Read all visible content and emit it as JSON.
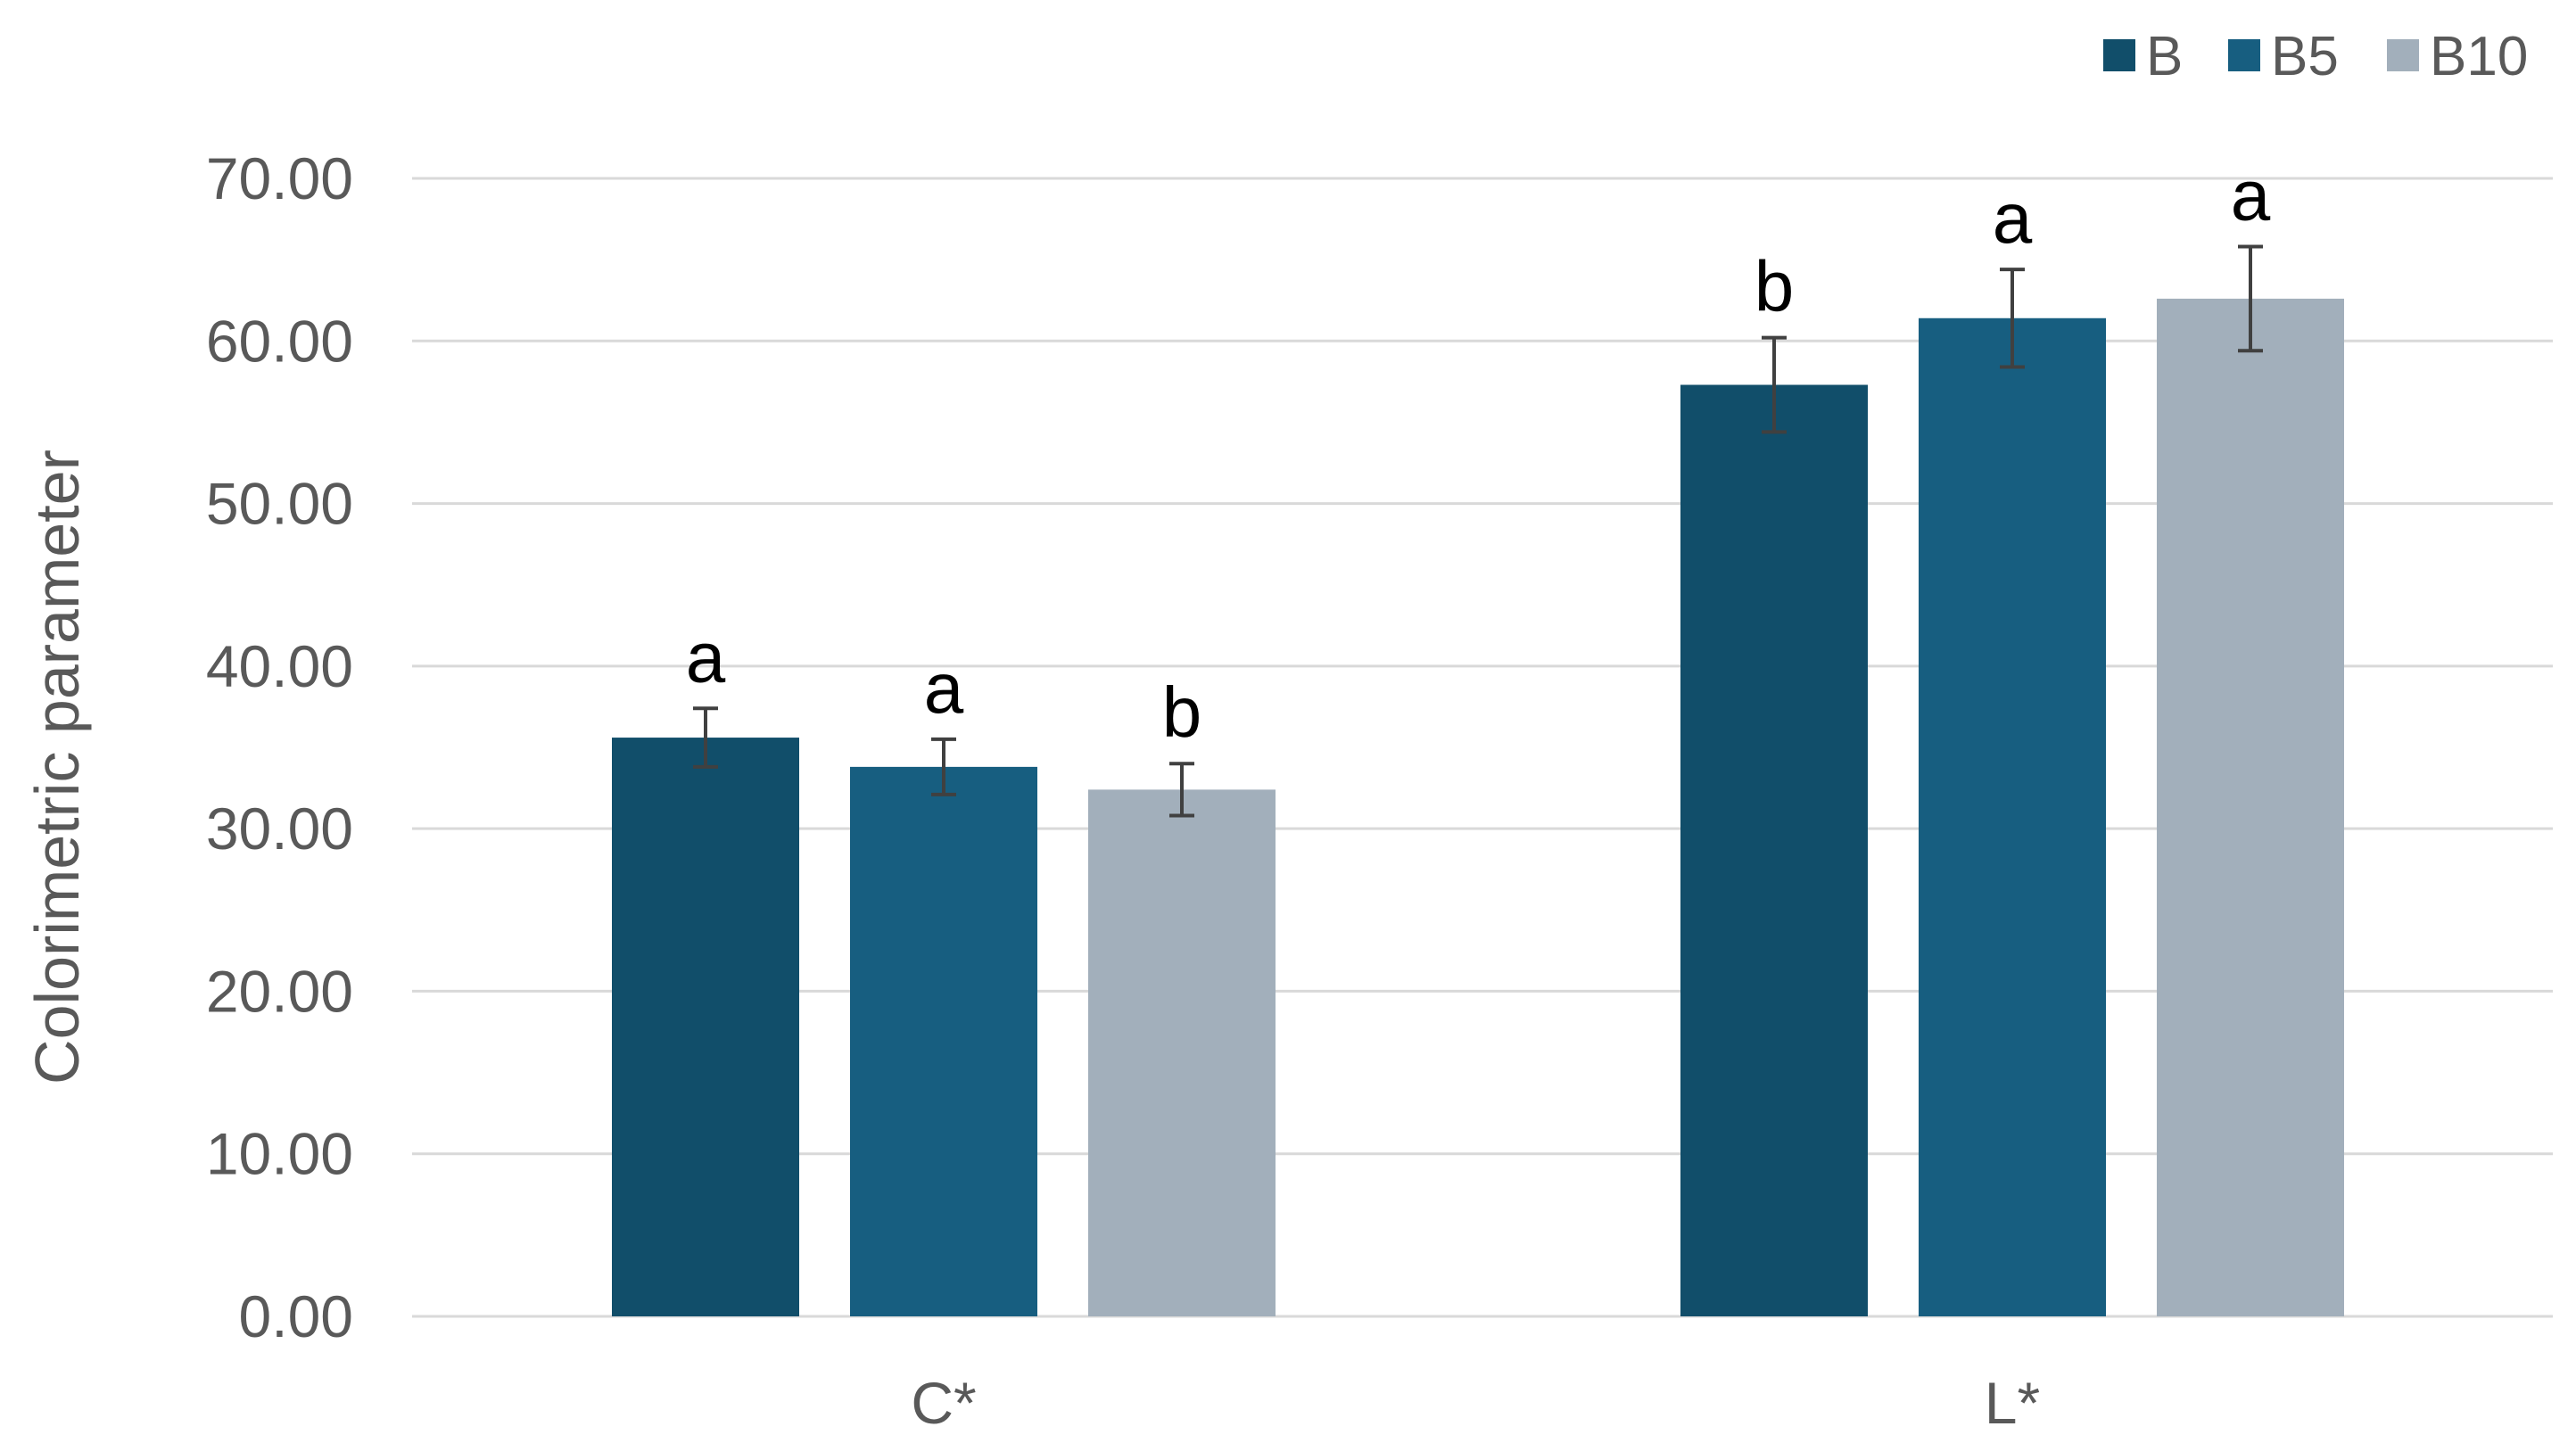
{
  "chart_data": {
    "type": "bar",
    "categories": [
      "C*",
      "L*"
    ],
    "series": [
      {
        "name": "B",
        "color": "#114e6a",
        "values": [
          35.6,
          57.3
        ],
        "errors": [
          1.8,
          2.9
        ],
        "labels": [
          "a",
          "b"
        ]
      },
      {
        "name": "B5",
        "color": "#175e80",
        "values": [
          33.8,
          61.4
        ],
        "errors": [
          1.7,
          3.0
        ],
        "labels": [
          "a",
          "a"
        ]
      },
      {
        "name": "B10",
        "color": "#a2afbb",
        "values": [
          32.4,
          62.6
        ],
        "errors": [
          1.6,
          3.2
        ],
        "labels": [
          "b",
          "a"
        ]
      }
    ],
    "ylabel": "Colorimetric parameter",
    "xlabel": "",
    "ylim": [
      0,
      70
    ],
    "yticks": [
      "0.00",
      "10.00",
      "20.00",
      "30.00",
      "40.00",
      "50.00",
      "60.00",
      "70.00"
    ],
    "grid": true,
    "legend_position": "top-right"
  }
}
